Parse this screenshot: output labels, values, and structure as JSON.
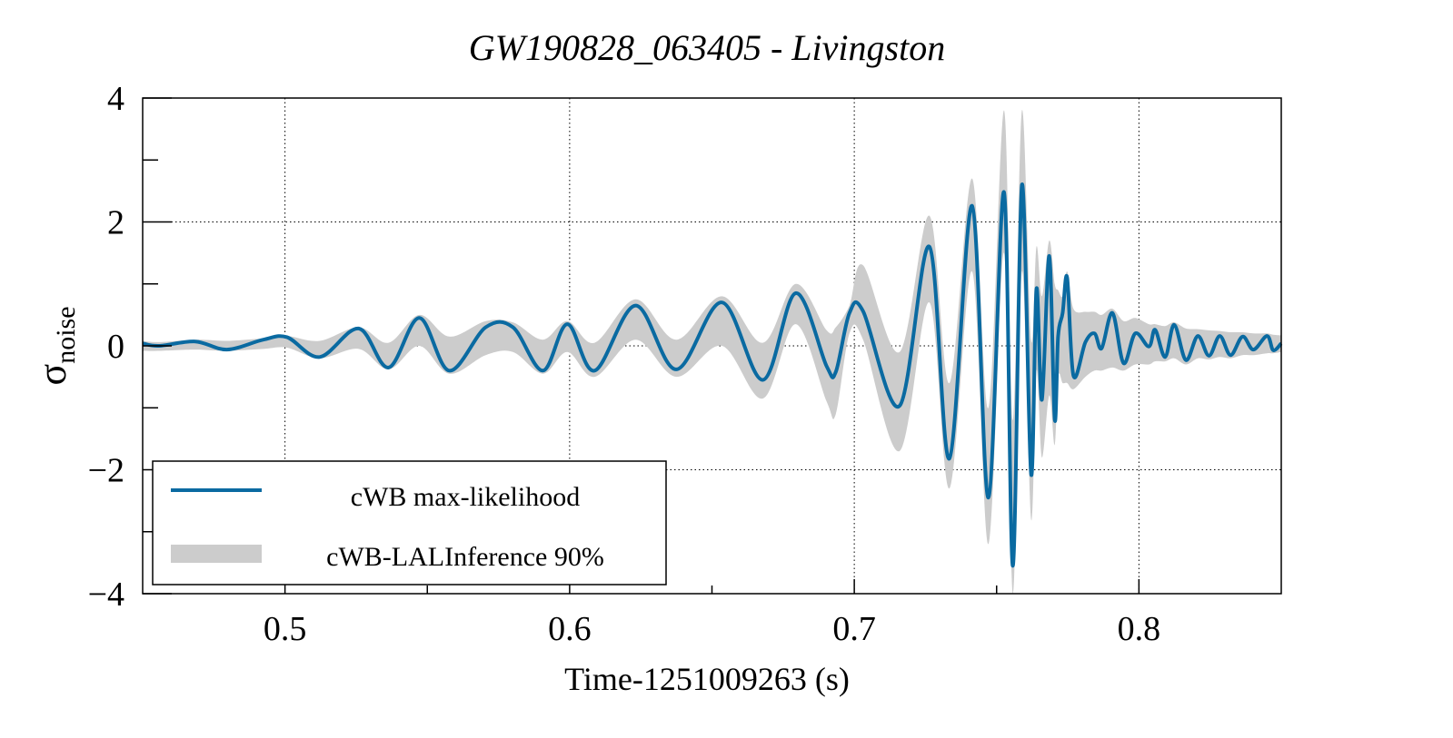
{
  "chart_data": {
    "type": "line",
    "title": "GW190828_063405 - Livingston",
    "xlabel": "Time-1251009263 (s)",
    "ylabel_main": "σ",
    "ylabel_sub": "noise",
    "xlim": [
      0.45,
      0.85
    ],
    "ylim": [
      -4,
      4
    ],
    "grid": true,
    "xticks": [
      0.5,
      0.6,
      0.7,
      0.8
    ],
    "xtick_labels": [
      "0.5",
      "0.6",
      "0.7",
      "0.8"
    ],
    "xminor": [
      0.55,
      0.65,
      0.75
    ],
    "yticks": [
      4,
      2,
      0,
      -2,
      -4
    ],
    "ytick_labels": [
      "4",
      "2",
      "0",
      "−2",
      "−4"
    ],
    "yminor": [
      3,
      1,
      -1,
      -3
    ],
    "legend_position": "bottom-left",
    "colors": {
      "line": "#0a6aa1",
      "band": "#cccccc"
    },
    "series": [
      {
        "name": "cWB max-likelihood",
        "kind": "line",
        "t": [
          0.45,
          0.4557,
          0.4685,
          0.4796,
          0.4924,
          0.5007,
          0.5122,
          0.5259,
          0.5364,
          0.5472,
          0.5577,
          0.5705,
          0.5801,
          0.5906,
          0.5992,
          0.6088,
          0.6232,
          0.6375,
          0.6535,
          0.6679,
          0.6794,
          0.6903,
          0.6935,
          0.6983,
          0.7031,
          0.7159,
          0.7264,
          0.7334,
          0.7414,
          0.7471,
          0.7526,
          0.7557,
          0.7589,
          0.7621,
          0.764,
          0.7659,
          0.7685,
          0.7704,
          0.7716,
          0.7732,
          0.7748,
          0.777,
          0.7812,
          0.7844,
          0.7869,
          0.7907,
          0.7946,
          0.7987,
          0.8035,
          0.8057,
          0.8092,
          0.8124,
          0.8165,
          0.8207,
          0.8246,
          0.8284,
          0.8322,
          0.8364,
          0.8402,
          0.845,
          0.8472,
          0.85
        ],
        "y": [
          0.04,
          0.0,
          0.07,
          -0.06,
          0.1,
          0.14,
          -0.18,
          0.28,
          -0.35,
          0.45,
          -0.4,
          0.3,
          0.3,
          -0.4,
          0.35,
          -0.4,
          0.65,
          -0.38,
          0.7,
          -0.55,
          0.85,
          -0.33,
          -0.42,
          0.53,
          0.56,
          -0.97,
          1.6,
          -1.82,
          2.26,
          -2.45,
          2.48,
          -3.55,
          2.6,
          -2.07,
          0.92,
          -0.87,
          1.45,
          -1.19,
          0.15,
          0.53,
          1.1,
          -0.48,
          0.06,
          0.2,
          -0.04,
          0.53,
          -0.28,
          0.2,
          -0.01,
          0.26,
          -0.18,
          0.34,
          -0.23,
          0.16,
          -0.16,
          0.16,
          -0.15,
          0.15,
          -0.06,
          0.16,
          -0.07,
          0.04
        ]
      },
      {
        "name": "cWB-LALInference 90%",
        "kind": "band",
        "t": [
          0.45,
          0.4557,
          0.4685,
          0.4796,
          0.4924,
          0.5007,
          0.5122,
          0.5259,
          0.5364,
          0.5472,
          0.5577,
          0.5705,
          0.5801,
          0.5906,
          0.5992,
          0.6088,
          0.6232,
          0.6375,
          0.6535,
          0.6679,
          0.6794,
          0.6903,
          0.6935,
          0.6983,
          0.7031,
          0.7159,
          0.7264,
          0.7334,
          0.7414,
          0.7471,
          0.7526,
          0.7557,
          0.7589,
          0.7621,
          0.764,
          0.7659,
          0.7685,
          0.7704,
          0.7716,
          0.7732,
          0.7748,
          0.777,
          0.7812,
          0.7844,
          0.7869,
          0.7907,
          0.7946,
          0.7987,
          0.8035,
          0.8057,
          0.8092,
          0.8124,
          0.8165,
          0.8207,
          0.8246,
          0.8284,
          0.8322,
          0.8364,
          0.8402,
          0.845,
          0.8472,
          0.85
        ],
        "lo": [
          -0.08,
          -0.08,
          -0.06,
          -0.08,
          -0.05,
          -0.03,
          -0.2,
          -0.05,
          -0.38,
          0.0,
          -0.45,
          -0.15,
          -0.1,
          -0.45,
          -0.1,
          -0.5,
          0.1,
          -0.5,
          0.0,
          -0.85,
          0.35,
          -0.9,
          -1.1,
          0.2,
          0.1,
          -1.7,
          0.7,
          -2.3,
          1.2,
          -3.2,
          1.5,
          -4.0,
          1.2,
          -2.8,
          -0.4,
          -1.8,
          -0.8,
          -1.6,
          -0.5,
          -0.6,
          -0.6,
          -0.7,
          -0.5,
          -0.4,
          -0.4,
          -0.35,
          -0.4,
          -0.3,
          -0.3,
          -0.25,
          -0.25,
          -0.2,
          -0.3,
          -0.2,
          -0.22,
          -0.18,
          -0.2,
          -0.15,
          -0.15,
          -0.12,
          -0.12,
          -0.1
        ],
        "hi": [
          0.08,
          0.06,
          0.1,
          0.08,
          0.12,
          0.16,
          0.08,
          0.3,
          0.05,
          0.5,
          0.15,
          0.4,
          0.38,
          0.1,
          0.4,
          0.05,
          0.75,
          0.1,
          0.8,
          0.05,
          1.0,
          0.25,
          0.3,
          0.65,
          1.3,
          -0.1,
          2.1,
          -0.6,
          2.7,
          -1.0,
          3.8,
          -1.2,
          3.8,
          0.1,
          1.6,
          0.8,
          1.7,
          1.0,
          0.9,
          0.8,
          1.2,
          0.6,
          0.55,
          0.55,
          0.5,
          0.6,
          0.4,
          0.45,
          0.35,
          0.35,
          0.32,
          0.38,
          0.28,
          0.27,
          0.25,
          0.24,
          0.22,
          0.22,
          0.2,
          0.2,
          0.18,
          0.17
        ]
      }
    ]
  }
}
